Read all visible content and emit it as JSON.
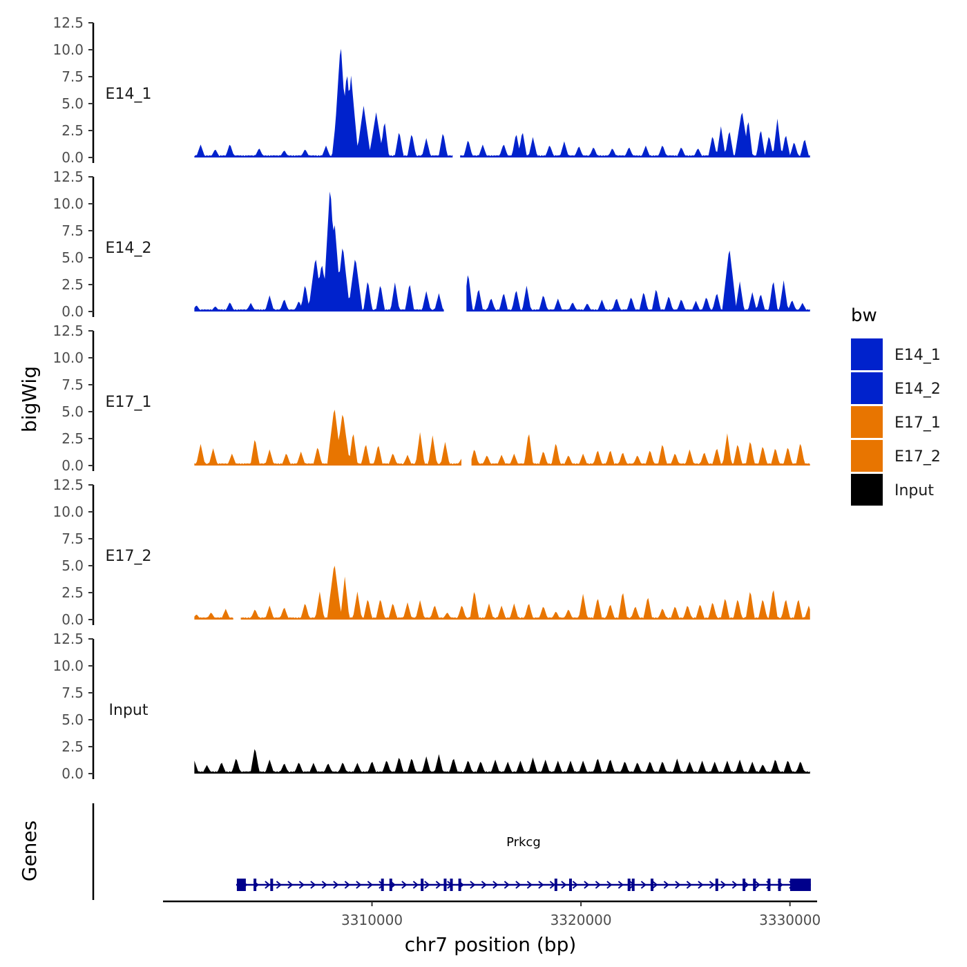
{
  "chart_data": {
    "type": "area",
    "title": "",
    "ylabel": "bigWig",
    "xlabel": "chr7 position (bp)",
    "ylim": [
      0,
      12.5
    ],
    "yticks": [
      0,
      2.5,
      5,
      7.5,
      10,
      12.5
    ],
    "ytick_labels": [
      "0.0",
      "2.5",
      "5.0",
      "7.5",
      "10.0",
      "12.5"
    ],
    "xlim": [
      3300000,
      3331300
    ],
    "xticks": [
      3310000,
      3320000,
      3330000
    ],
    "xtick_labels": [
      "3310000",
      "3320000",
      "3330000"
    ],
    "legend": {
      "title": "bw",
      "placement": "right",
      "entries": [
        {
          "label": "E14_1",
          "color": "#0022cc"
        },
        {
          "label": "E14_2",
          "color": "#0022cc"
        },
        {
          "label": "E17_1",
          "color": "#e87500"
        },
        {
          "label": "E17_2",
          "color": "#e87500"
        },
        {
          "label": "Input",
          "color": "#000000"
        }
      ]
    },
    "series": [
      {
        "name": "E14_1",
        "color": "#0022cc",
        "gaps": [
          [
            3313900,
            3314200
          ]
        ],
        "peaks": [
          [
            3301800,
            1.2
          ],
          [
            3302500,
            0.8
          ],
          [
            3303200,
            1.3
          ],
          [
            3304600,
            0.9
          ],
          [
            3305800,
            0.7
          ],
          [
            3306800,
            0.8
          ],
          [
            3307800,
            1.1
          ],
          [
            3308300,
            4.0
          ],
          [
            3308500,
            10.7
          ],
          [
            3308800,
            8.0
          ],
          [
            3309000,
            7.6
          ],
          [
            3309600,
            4.8
          ],
          [
            3310200,
            4.2
          ],
          [
            3310600,
            3.5
          ],
          [
            3311300,
            2.5
          ],
          [
            3311900,
            2.3
          ],
          [
            3312600,
            1.8
          ],
          [
            3313400,
            2.4
          ],
          [
            3314600,
            1.7
          ],
          [
            3315300,
            1.2
          ],
          [
            3316300,
            1.3
          ],
          [
            3316900,
            2.3
          ],
          [
            3317200,
            2.5
          ],
          [
            3317700,
            1.9
          ],
          [
            3318500,
            1.2
          ],
          [
            3319200,
            1.5
          ],
          [
            3319900,
            1.1
          ],
          [
            3320600,
            1.0
          ],
          [
            3321500,
            0.9
          ],
          [
            3322300,
            1.0
          ],
          [
            3323100,
            1.1
          ],
          [
            3323900,
            1.2
          ],
          [
            3324800,
            1.0
          ],
          [
            3325600,
            0.9
          ],
          [
            3326300,
            2.1
          ],
          [
            3326700,
            2.9
          ],
          [
            3327100,
            2.6
          ],
          [
            3327700,
            4.4
          ],
          [
            3328000,
            3.6
          ],
          [
            3328600,
            2.7
          ],
          [
            3329000,
            2.1
          ],
          [
            3329400,
            3.6
          ],
          [
            3329800,
            2.2
          ],
          [
            3330200,
            1.5
          ],
          [
            3330700,
            1.8
          ]
        ]
      },
      {
        "name": "E14_2",
        "color": "#0022cc",
        "gaps": [
          [
            3313500,
            3314500
          ]
        ],
        "peaks": [
          [
            3301600,
            0.6
          ],
          [
            3302500,
            0.5
          ],
          [
            3303200,
            0.9
          ],
          [
            3304200,
            0.8
          ],
          [
            3305100,
            1.5
          ],
          [
            3305800,
            1.2
          ],
          [
            3306500,
            1.0
          ],
          [
            3306800,
            2.6
          ],
          [
            3307300,
            5.1
          ],
          [
            3307600,
            4.5
          ],
          [
            3308000,
            11.8
          ],
          [
            3308200,
            8.5
          ],
          [
            3308600,
            6.2
          ],
          [
            3309200,
            5.1
          ],
          [
            3309800,
            3.0
          ],
          [
            3310400,
            2.6
          ],
          [
            3311100,
            2.7
          ],
          [
            3311800,
            2.7
          ],
          [
            3312600,
            1.9
          ],
          [
            3313200,
            1.7
          ],
          [
            3314600,
            3.7
          ],
          [
            3315100,
            2.2
          ],
          [
            3315700,
            1.3
          ],
          [
            3316300,
            1.8
          ],
          [
            3316900,
            2.1
          ],
          [
            3317400,
            2.4
          ],
          [
            3318200,
            1.6
          ],
          [
            3318900,
            1.2
          ],
          [
            3319600,
            0.9
          ],
          [
            3320300,
            0.8
          ],
          [
            3321000,
            1.1
          ],
          [
            3321700,
            1.3
          ],
          [
            3322400,
            1.4
          ],
          [
            3323000,
            1.9
          ],
          [
            3323600,
            2.2
          ],
          [
            3324200,
            1.5
          ],
          [
            3324800,
            1.2
          ],
          [
            3325500,
            1.0
          ],
          [
            3326000,
            1.4
          ],
          [
            3326500,
            1.8
          ],
          [
            3327100,
            6.0
          ],
          [
            3327600,
            2.8
          ],
          [
            3328200,
            1.8
          ],
          [
            3328600,
            1.7
          ],
          [
            3329200,
            3.0
          ],
          [
            3329700,
            2.9
          ],
          [
            3330100,
            1.1
          ],
          [
            3330600,
            0.8
          ]
        ]
      },
      {
        "name": "E17_1",
        "color": "#e87500",
        "gaps": [
          [
            3314300,
            3314700
          ]
        ],
        "peaks": [
          [
            3301800,
            2.0
          ],
          [
            3302400,
            1.6
          ],
          [
            3303300,
            1.1
          ],
          [
            3304400,
            2.6
          ],
          [
            3305100,
            1.5
          ],
          [
            3305900,
            1.2
          ],
          [
            3306600,
            1.3
          ],
          [
            3307400,
            1.8
          ],
          [
            3308200,
            5.5
          ],
          [
            3308600,
            5.0
          ],
          [
            3309100,
            3.2
          ],
          [
            3309700,
            2.1
          ],
          [
            3310300,
            2.0
          ],
          [
            3311000,
            1.2
          ],
          [
            3311700,
            1.0
          ],
          [
            3312300,
            3.1
          ],
          [
            3312900,
            2.8
          ],
          [
            3313500,
            2.2
          ],
          [
            3314300,
            0.7
          ],
          [
            3314900,
            1.6
          ],
          [
            3315500,
            1.0
          ],
          [
            3316200,
            1.0
          ],
          [
            3316800,
            1.1
          ],
          [
            3317500,
            3.2
          ],
          [
            3318200,
            1.4
          ],
          [
            3318800,
            2.2
          ],
          [
            3319400,
            1.0
          ],
          [
            3320100,
            1.1
          ],
          [
            3320800,
            1.5
          ],
          [
            3321400,
            1.5
          ],
          [
            3322000,
            1.3
          ],
          [
            3322700,
            1.0
          ],
          [
            3323300,
            1.5
          ],
          [
            3323900,
            2.1
          ],
          [
            3324500,
            1.2
          ],
          [
            3325200,
            1.5
          ],
          [
            3325900,
            1.3
          ],
          [
            3326500,
            1.7
          ],
          [
            3327000,
            3.0
          ],
          [
            3327500,
            2.1
          ],
          [
            3328100,
            2.4
          ],
          [
            3328700,
            1.9
          ],
          [
            3329300,
            1.7
          ],
          [
            3329900,
            1.8
          ],
          [
            3330500,
            2.2
          ]
        ]
      },
      {
        "name": "E17_2",
        "color": "#e87500",
        "gaps": [
          [
            3303400,
            3303700
          ]
        ],
        "peaks": [
          [
            3301600,
            0.5
          ],
          [
            3302300,
            0.7
          ],
          [
            3303000,
            1.0
          ],
          [
            3304400,
            1.0
          ],
          [
            3305100,
            1.3
          ],
          [
            3305800,
            1.2
          ],
          [
            3306800,
            1.6
          ],
          [
            3307500,
            2.6
          ],
          [
            3308200,
            5.3
          ],
          [
            3308700,
            4.0
          ],
          [
            3309300,
            2.6
          ],
          [
            3309800,
            2.0
          ],
          [
            3310400,
            2.0
          ],
          [
            3311000,
            1.6
          ],
          [
            3311700,
            1.6
          ],
          [
            3312300,
            1.8
          ],
          [
            3313000,
            1.4
          ],
          [
            3313600,
            0.7
          ],
          [
            3314300,
            1.4
          ],
          [
            3314900,
            2.8
          ],
          [
            3315600,
            1.5
          ],
          [
            3316200,
            1.3
          ],
          [
            3316800,
            1.5
          ],
          [
            3317500,
            1.6
          ],
          [
            3318200,
            1.3
          ],
          [
            3318800,
            0.8
          ],
          [
            3319400,
            1.0
          ],
          [
            3320100,
            2.4
          ],
          [
            3320800,
            2.1
          ],
          [
            3321400,
            1.5
          ],
          [
            3322000,
            2.7
          ],
          [
            3322600,
            1.3
          ],
          [
            3323200,
            2.2
          ],
          [
            3323900,
            1.1
          ],
          [
            3324500,
            1.3
          ],
          [
            3325100,
            1.4
          ],
          [
            3325700,
            1.5
          ],
          [
            3326300,
            1.7
          ],
          [
            3326900,
            2.1
          ],
          [
            3327500,
            2.0
          ],
          [
            3328100,
            2.8
          ],
          [
            3328700,
            2.0
          ],
          [
            3329200,
            3.0
          ],
          [
            3329800,
            2.0
          ],
          [
            3330400,
            2.0
          ],
          [
            3330900,
            1.3
          ]
        ]
      },
      {
        "name": "Input",
        "color": "#000000",
        "gaps": [],
        "peaks": [
          [
            3301500,
            1.2
          ],
          [
            3302100,
            0.8
          ],
          [
            3302800,
            1.1
          ],
          [
            3303500,
            1.5
          ],
          [
            3304400,
            2.5
          ],
          [
            3305100,
            1.3
          ],
          [
            3305800,
            1.0
          ],
          [
            3306500,
            1.1
          ],
          [
            3307200,
            1.0
          ],
          [
            3307900,
            1.0
          ],
          [
            3308600,
            1.1
          ],
          [
            3309300,
            1.0
          ],
          [
            3310000,
            1.2
          ],
          [
            3310700,
            1.3
          ],
          [
            3311300,
            1.6
          ],
          [
            3311900,
            1.5
          ],
          [
            3312600,
            1.6
          ],
          [
            3313200,
            1.8
          ],
          [
            3313900,
            1.5
          ],
          [
            3314600,
            1.3
          ],
          [
            3315200,
            1.2
          ],
          [
            3315900,
            1.3
          ],
          [
            3316500,
            1.1
          ],
          [
            3317100,
            1.2
          ],
          [
            3317700,
            1.5
          ],
          [
            3318300,
            1.3
          ],
          [
            3318900,
            1.2
          ],
          [
            3319500,
            1.2
          ],
          [
            3320100,
            1.2
          ],
          [
            3320800,
            1.5
          ],
          [
            3321400,
            1.4
          ],
          [
            3322100,
            1.2
          ],
          [
            3322700,
            1.1
          ],
          [
            3323300,
            1.2
          ],
          [
            3323900,
            1.2
          ],
          [
            3324600,
            1.4
          ],
          [
            3325200,
            1.1
          ],
          [
            3325800,
            1.2
          ],
          [
            3326400,
            1.1
          ],
          [
            3327000,
            1.2
          ],
          [
            3327600,
            1.3
          ],
          [
            3328200,
            1.1
          ],
          [
            3328700,
            0.9
          ],
          [
            3329300,
            1.4
          ],
          [
            3329900,
            1.3
          ],
          [
            3330500,
            1.2
          ]
        ]
      }
    ],
    "genes_track": {
      "label": "Genes",
      "gene_name": "Prkcg",
      "color": "#00008b",
      "start": 3303500,
      "end": 3331000,
      "strand": "+",
      "exons": [
        3303600,
        3304400,
        3305200,
        3310500,
        3310900,
        3312400,
        3313500,
        3313800,
        3314200,
        3318800,
        3319500,
        3322300,
        3322500,
        3323400,
        3326500,
        3327800,
        3328300,
        3329000,
        3329500
      ]
    }
  }
}
